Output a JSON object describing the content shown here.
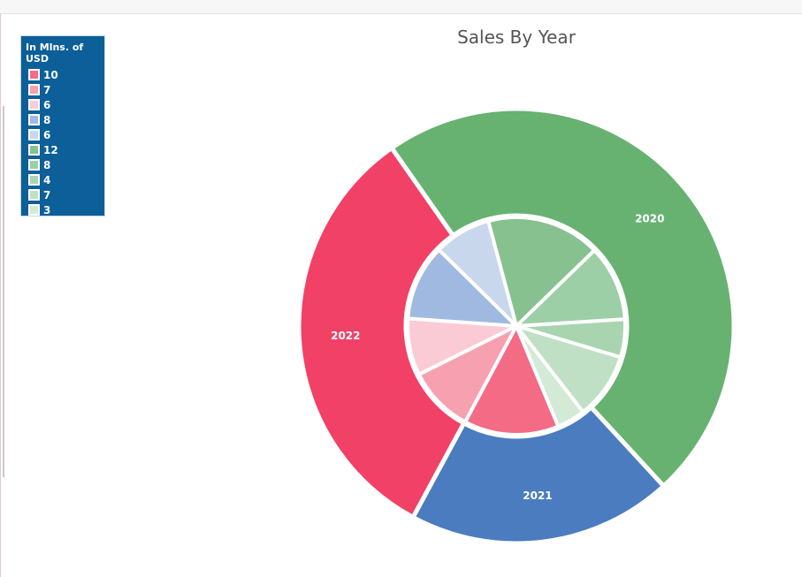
{
  "chart_data": {
    "type": "pie",
    "title": "Sales By Year",
    "legend": {
      "title": "In Mlns. of USD",
      "placement": "top-left"
    },
    "series": [
      {
        "ring": "outer",
        "slices": [
          {
            "label": "2020",
            "value": 34,
            "color": "#67b271"
          },
          {
            "label": "2021",
            "value": 14,
            "color": "#4a7cbf"
          },
          {
            "label": "2022",
            "value": 23,
            "color": "#f24166"
          }
        ]
      },
      {
        "ring": "inner",
        "slices": [
          {
            "label": "12",
            "value": 12,
            "color": "#87c190",
            "parent": "2020"
          },
          {
            "label": "8",
            "value": 8,
            "color": "#9ccfa5",
            "parent": "2020"
          },
          {
            "label": "4",
            "value": 4,
            "color": "#a8d5b0",
            "parent": "2020"
          },
          {
            "label": "7",
            "value": 7,
            "color": "#bfe0c4",
            "parent": "2020"
          },
          {
            "label": "3",
            "value": 3,
            "color": "#d3ead6",
            "parent": "2020"
          },
          {
            "label": "10",
            "value": 10,
            "color": "#f46b86",
            "parent": "2022"
          },
          {
            "label": "7",
            "value": 7,
            "color": "#f7a0b0",
            "parent": "2022"
          },
          {
            "label": "6",
            "value": 6,
            "color": "#fbcbd5",
            "parent": "2022"
          },
          {
            "label": "8",
            "value": 8,
            "color": "#a0b9e0",
            "parent": "2021"
          },
          {
            "label": "6",
            "value": 6,
            "color": "#c8d7ec",
            "parent": "2021"
          }
        ]
      }
    ],
    "legend_entries": [
      {
        "label": "10",
        "color": "#f46b86"
      },
      {
        "label": "7",
        "color": "#f7a0b0"
      },
      {
        "label": "6",
        "color": "#fbcbd5"
      },
      {
        "label": "8",
        "color": "#a0b9e0"
      },
      {
        "label": "6",
        "color": "#c8d7ec"
      },
      {
        "label": "12",
        "color": "#87c190"
      },
      {
        "label": "8",
        "color": "#9ccfa5"
      },
      {
        "label": "4",
        "color": "#a8d5b0"
      },
      {
        "label": "7",
        "color": "#bfe0c4"
      },
      {
        "label": "3",
        "color": "#d3ead6"
      }
    ]
  }
}
